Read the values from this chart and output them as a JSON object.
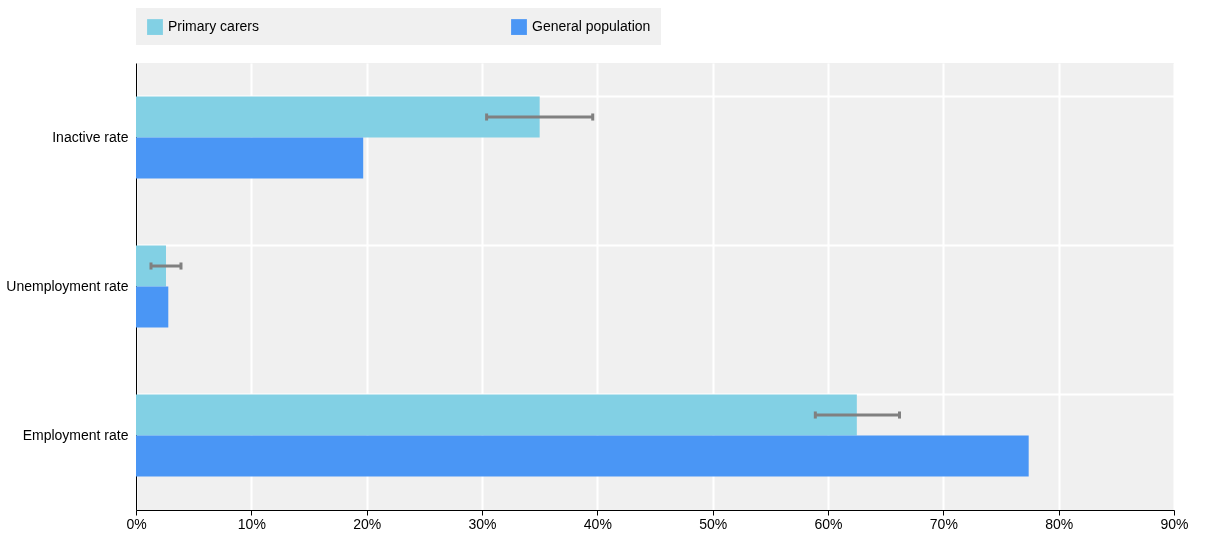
{
  "chart_data": {
    "type": "bar",
    "orientation": "horizontal",
    "categories": [
      "Inactive rate",
      "Unemployment rate",
      "Employment rate"
    ],
    "series": [
      {
        "name": "Primary carers",
        "color": "#82d0e4",
        "values": [
          35.0,
          2.6,
          62.5
        ],
        "errors": [
          [
            30.4,
            39.6
          ],
          [
            1.3,
            3.9
          ],
          [
            58.9,
            66.2
          ]
        ]
      },
      {
        "name": "General population",
        "color": "#4a96f5",
        "values": [
          19.7,
          2.8,
          77.4
        ]
      }
    ],
    "xlim": [
      0,
      90
    ],
    "xticks": [
      {
        "value": 0,
        "label": "0%"
      },
      {
        "value": 10,
        "label": "10%"
      },
      {
        "value": 20,
        "label": "20%"
      },
      {
        "value": 30,
        "label": "30%"
      },
      {
        "value": 40,
        "label": "40%"
      },
      {
        "value": 50,
        "label": "50%"
      },
      {
        "value": 60,
        "label": "60%"
      },
      {
        "value": 70,
        "label": "70%"
      },
      {
        "value": 80,
        "label": "80%"
      },
      {
        "value": 90,
        "label": "90%"
      }
    ],
    "grid": true,
    "legend": "top"
  }
}
